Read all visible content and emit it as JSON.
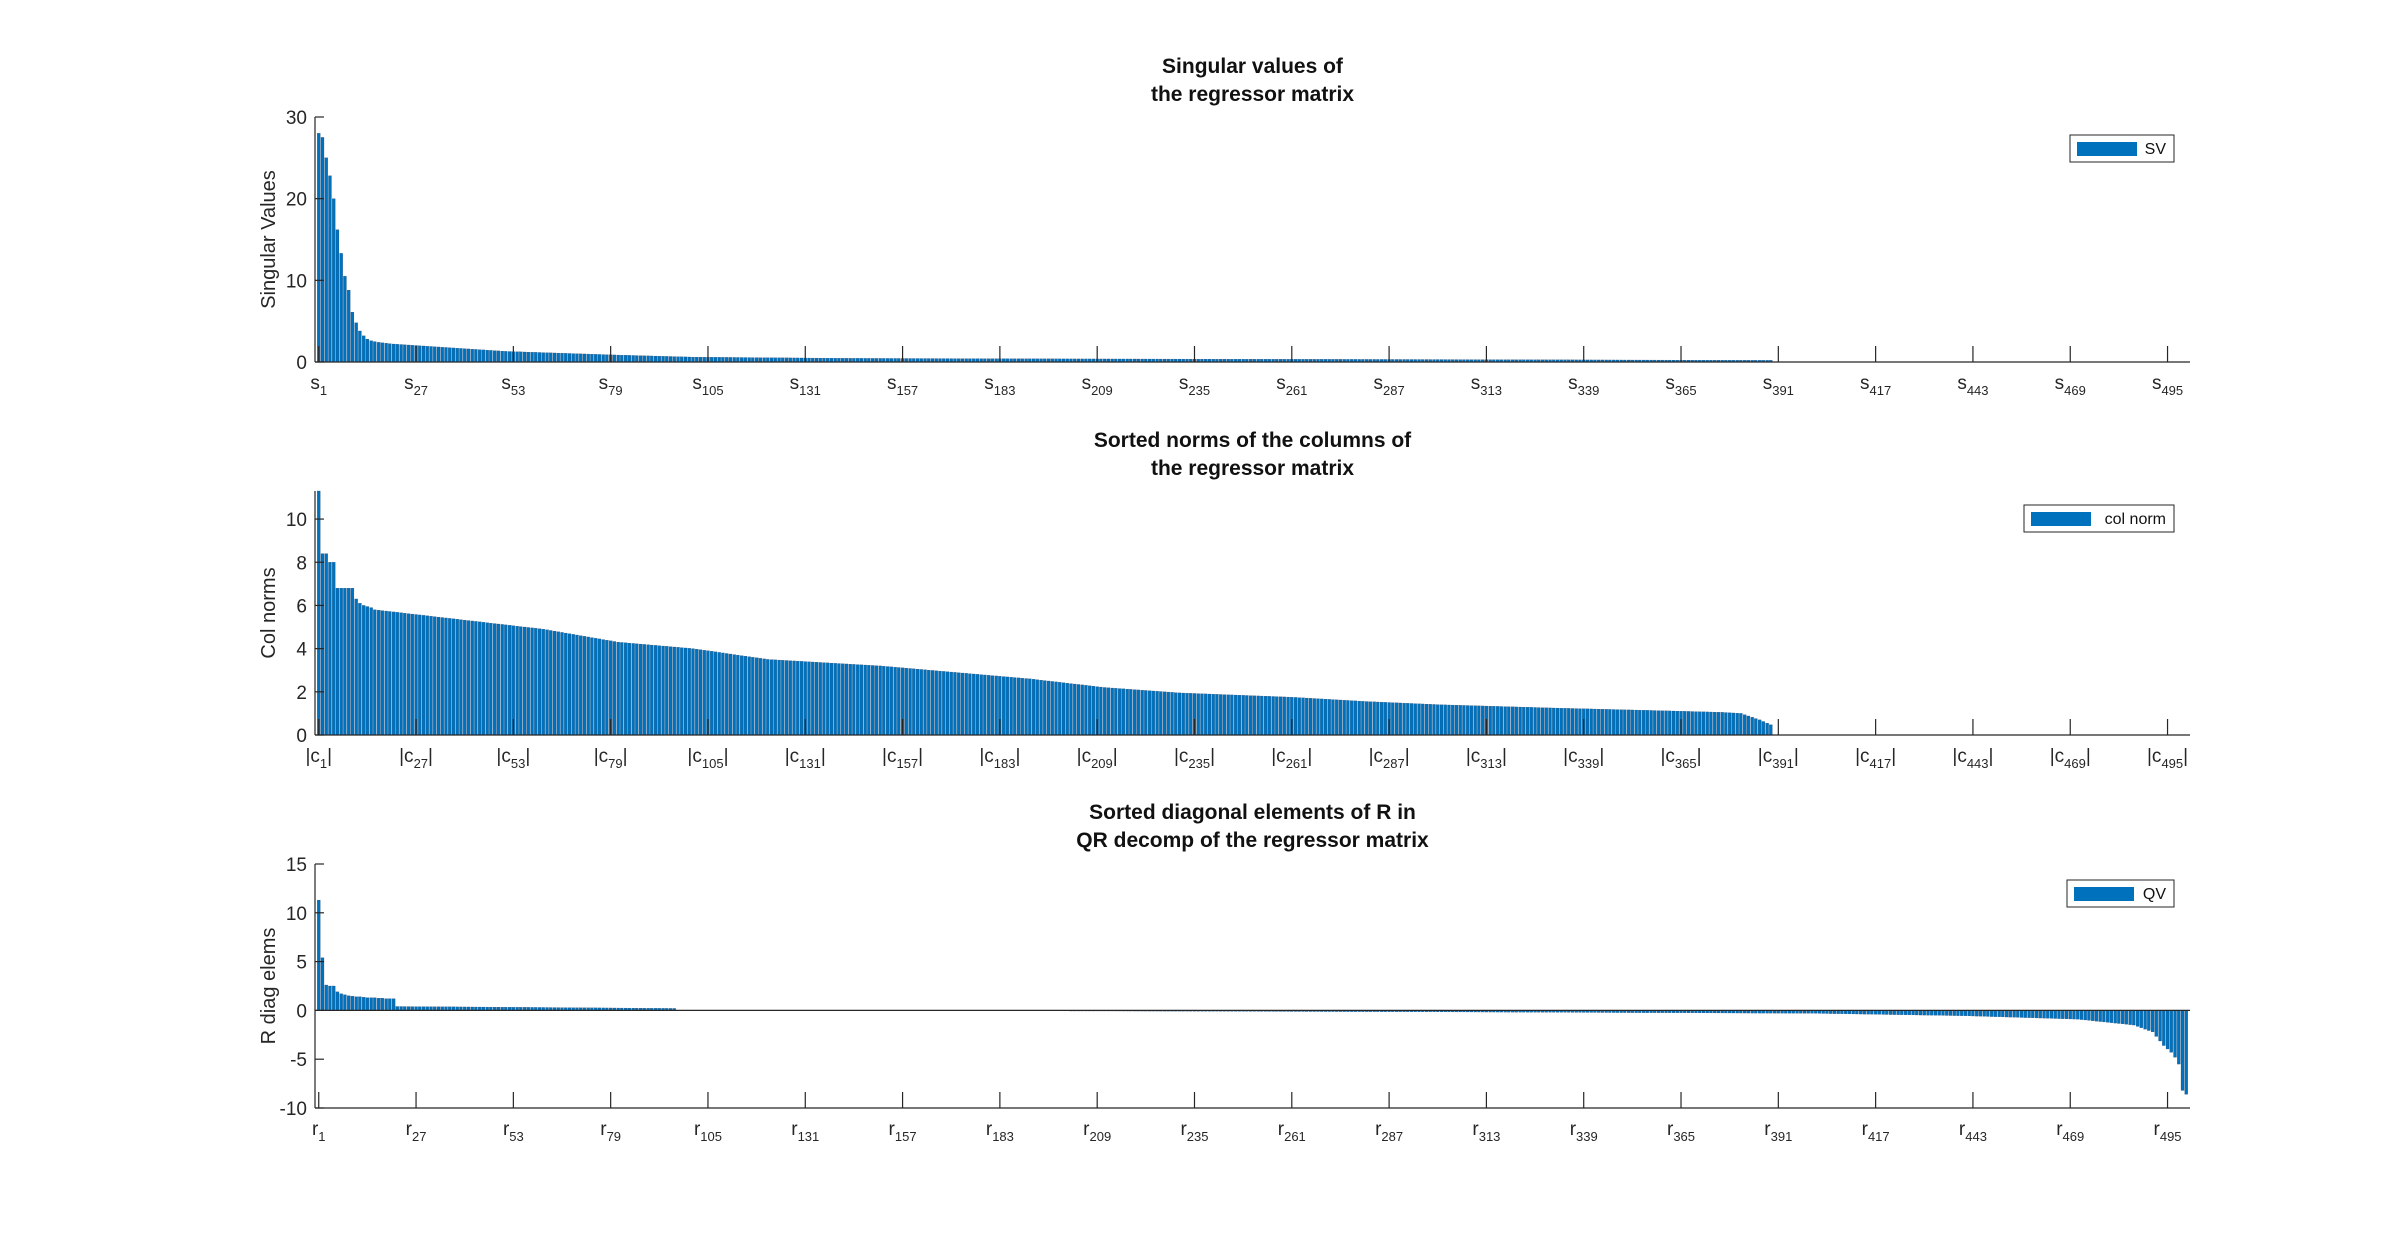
{
  "chart_data": [
    {
      "type": "bar",
      "title": [
        "Singular values of",
        "the regressor matrix"
      ],
      "xlabel": "",
      "ylabel": "Singular Values",
      "ylim": [
        0,
        30
      ],
      "yticks": [
        0,
        10,
        20,
        30
      ],
      "n": 500,
      "categories": [
        "s_1",
        "s_27",
        "s_53",
        "s_79",
        "s_105",
        "s_131",
        "s_157",
        "s_183",
        "s_209",
        "s_235",
        "s_261",
        "s_287",
        "s_313",
        "s_339",
        "s_365",
        "s_391",
        "s_417",
        "s_443",
        "s_469",
        "s_495"
      ],
      "series": [
        {
          "name": "SV",
          "color": "#0072BD"
        }
      ],
      "legend": "top-right",
      "values_head": [
        28,
        27.5,
        25,
        22.8,
        20,
        16.2,
        13.3,
        10.5,
        8.8,
        6.1,
        4.8,
        3.8,
        3.2,
        2.8,
        2.6,
        2.5,
        2.4,
        2.35,
        2.3,
        2.25
      ],
      "values_profile": [
        [
          20,
          2.2
        ],
        [
          50,
          1.3
        ],
        [
          80,
          0.85
        ],
        [
          100,
          0.6
        ],
        [
          140,
          0.45
        ],
        [
          200,
          0.38
        ],
        [
          300,
          0.3
        ],
        [
          389,
          0.2
        ]
      ],
      "nonzero_count": 389
    },
    {
      "type": "bar",
      "title": [
        "Sorted norms of the columns of",
        "the regressor matrix"
      ],
      "xlabel": "",
      "ylabel": "Col norms",
      "ylim": [
        0,
        11.3
      ],
      "yticks": [
        0,
        2,
        4,
        6,
        8,
        10
      ],
      "n": 500,
      "categories": [
        "|c_1|",
        "|c_27|",
        "|c_53|",
        "|c_79|",
        "|c_105|",
        "|c_131|",
        "|c_157|",
        "|c_183|",
        "|c_209|",
        "|c_235|",
        "|c_261|",
        "|c_287|",
        "|c_313|",
        "|c_339|",
        "|c_365|",
        "|c_391|",
        "|c_417|",
        "|c_443|",
        "|c_469|",
        "|c_495|"
      ],
      "series": [
        {
          "name": "col norm",
          "color": "#0072BD"
        }
      ],
      "legend": "top-right",
      "values_head": [
        11.3,
        8.4,
        8.4,
        8.0,
        8.0,
        6.8,
        6.8,
        6.8,
        6.8,
        6.8,
        6.3,
        6.1,
        6.0,
        5.95,
        5.9
      ],
      "values_profile": [
        [
          15,
          5.8
        ],
        [
          20,
          5.7
        ],
        [
          40,
          5.3
        ],
        [
          60,
          4.9
        ],
        [
          80,
          4.3
        ],
        [
          100,
          4.0
        ],
        [
          120,
          3.5
        ],
        [
          150,
          3.2
        ],
        [
          170,
          2.9
        ],
        [
          190,
          2.6
        ],
        [
          210,
          2.2
        ],
        [
          230,
          1.95
        ],
        [
          260,
          1.75
        ],
        [
          280,
          1.55
        ],
        [
          300,
          1.4
        ],
        [
          330,
          1.25
        ],
        [
          360,
          1.12
        ],
        [
          375,
          1.05
        ],
        [
          380,
          1.0
        ],
        [
          385,
          0.7
        ],
        [
          389,
          0.4
        ]
      ],
      "nonzero_count": 389
    },
    {
      "type": "bar",
      "title": [
        "Sorted diagonal elements of R in",
        "QR decomp of the regressor matrix"
      ],
      "xlabel": "",
      "ylabel": "R diag elems",
      "ylim": [
        -10,
        15
      ],
      "yticks": [
        -10,
        -5,
        0,
        5,
        10,
        15
      ],
      "n": 500,
      "categories": [
        "r_1",
        "r_27",
        "r_53",
        "r_79",
        "r_105",
        "r_131",
        "r_157",
        "r_183",
        "r_209",
        "r_235",
        "r_261",
        "r_287",
        "r_313",
        "r_339",
        "r_365",
        "r_391",
        "r_417",
        "r_443",
        "r_469",
        "r_495"
      ],
      "series": [
        {
          "name": "QV",
          "color": "#0072BD"
        }
      ],
      "legend": "top-right",
      "values_head": [
        11.3,
        5.4,
        2.6,
        2.5,
        2.5,
        1.9,
        1.7,
        1.6,
        1.5,
        1.45,
        1.4,
        1.4,
        1.35,
        1.3,
        1.3,
        1.3,
        1.25,
        1.25,
        1.2,
        1.2,
        1.2
      ],
      "values_profile": [
        [
          21,
          0.4
        ],
        [
          60,
          0.3
        ],
        [
          95,
          0.2
        ],
        [
          96,
          0.0
        ],
        [
          200,
          0.0
        ],
        [
          201,
          -0.05
        ],
        [
          300,
          -0.15
        ],
        [
          400,
          -0.3
        ],
        [
          440,
          -0.55
        ],
        [
          470,
          -0.9
        ],
        [
          485,
          -1.5
        ],
        [
          490,
          -2.2
        ],
        [
          493,
          -3.6
        ],
        [
          495,
          -4.3
        ],
        [
          496,
          -4.8
        ],
        [
          497,
          -5.5
        ],
        [
          498,
          -8.2
        ],
        [
          499,
          -8.6
        ]
      ]
    }
  ]
}
